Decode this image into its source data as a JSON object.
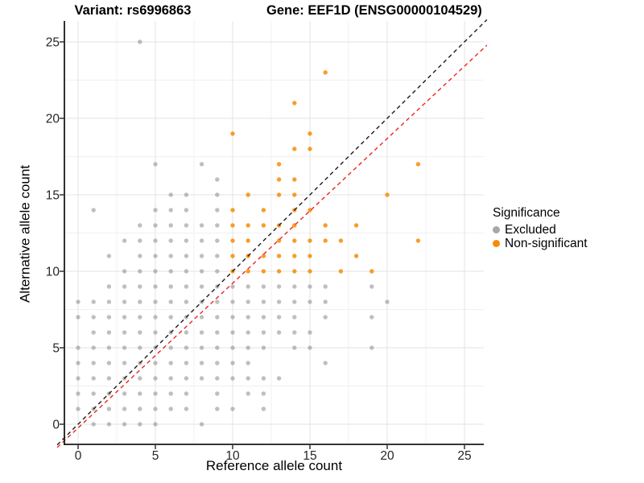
{
  "figure": {
    "title_left": "Variant: rs6996863",
    "title_right": "Gene: EEF1D (ENSG00000104529)"
  },
  "axes": {
    "x_label": "Reference allele count",
    "y_label": "Alternative allele count"
  },
  "legend": {
    "title": "Significance",
    "items": [
      {
        "label": "Excluded",
        "color": "#a8a8a8"
      },
      {
        "label": "Non-significant",
        "color": "#f78c04"
      }
    ]
  },
  "chart_data": {
    "type": "scatter",
    "title": "Variant: rs6996863 — Gene: EEF1D (ENSG00000104529)",
    "xlabel": "Reference allele count",
    "ylabel": "Alternative allele count",
    "x_ticks": [
      0,
      5,
      10,
      15,
      20,
      25
    ],
    "y_ticks": [
      0,
      5,
      10,
      15,
      20,
      25
    ],
    "xlim": [
      -0.9,
      26.3
    ],
    "ylim": [
      -1.35,
      26.4
    ],
    "grid": {
      "minor_every": 2.5,
      "major_every": 5,
      "major_color": "#e3e3e3",
      "minor_color": "#f0f0f0"
    },
    "legend_position": "right",
    "reference_lines": [
      {
        "name": "identity",
        "slope": 1,
        "intercept": 0,
        "color": "#1a1a1a",
        "style": "dashed"
      },
      {
        "name": "fit",
        "slope": 0.946,
        "intercept": -0.24,
        "color": "#ee2222",
        "style": "dashed"
      }
    ],
    "series": [
      {
        "name": "Excluded",
        "color": "#808080",
        "opacity": 0.5,
        "points": [
          [
            1,
            0
          ],
          [
            2,
            0
          ],
          [
            3,
            0
          ],
          [
            4,
            0
          ],
          [
            5,
            0
          ],
          [
            8,
            0
          ],
          [
            0,
            1
          ],
          [
            1,
            1
          ],
          [
            2,
            1
          ],
          [
            3,
            1
          ],
          [
            4,
            1
          ],
          [
            5,
            1
          ],
          [
            6,
            1
          ],
          [
            7,
            1
          ],
          [
            9,
            1
          ],
          [
            10,
            1
          ],
          [
            12,
            1
          ],
          [
            0,
            2
          ],
          [
            1,
            2
          ],
          [
            2,
            2
          ],
          [
            3,
            2
          ],
          [
            4,
            2
          ],
          [
            5,
            2
          ],
          [
            6,
            2
          ],
          [
            7,
            2
          ],
          [
            9,
            2
          ],
          [
            11,
            2
          ],
          [
            12,
            2
          ],
          [
            0,
            3
          ],
          [
            1,
            3
          ],
          [
            2,
            3
          ],
          [
            3,
            3
          ],
          [
            4,
            3
          ],
          [
            5,
            3
          ],
          [
            6,
            3
          ],
          [
            7,
            3
          ],
          [
            8,
            3
          ],
          [
            9,
            3
          ],
          [
            10,
            3
          ],
          [
            11,
            3
          ],
          [
            12,
            3
          ],
          [
            13,
            3
          ],
          [
            0,
            4
          ],
          [
            1,
            4
          ],
          [
            2,
            4
          ],
          [
            3,
            4
          ],
          [
            4,
            4
          ],
          [
            5,
            4
          ],
          [
            6,
            4
          ],
          [
            7,
            4
          ],
          [
            8,
            4
          ],
          [
            9,
            4
          ],
          [
            10,
            4
          ],
          [
            11,
            4
          ],
          [
            16,
            4
          ],
          [
            0,
            5
          ],
          [
            1,
            5
          ],
          [
            2,
            5
          ],
          [
            3,
            5
          ],
          [
            4,
            5
          ],
          [
            5,
            5
          ],
          [
            6,
            5
          ],
          [
            7,
            5
          ],
          [
            8,
            5
          ],
          [
            9,
            5
          ],
          [
            10,
            5
          ],
          [
            11,
            5
          ],
          [
            12,
            5
          ],
          [
            14,
            5
          ],
          [
            15,
            5
          ],
          [
            19,
            5
          ],
          [
            1,
            6
          ],
          [
            2,
            6
          ],
          [
            3,
            6
          ],
          [
            4,
            6
          ],
          [
            5,
            6
          ],
          [
            6,
            6
          ],
          [
            7,
            6
          ],
          [
            8,
            6
          ],
          [
            9,
            6
          ],
          [
            10,
            6
          ],
          [
            11,
            6
          ],
          [
            12,
            6
          ],
          [
            13,
            6
          ],
          [
            14,
            6
          ],
          [
            15,
            6
          ],
          [
            0,
            7
          ],
          [
            1,
            7
          ],
          [
            2,
            7
          ],
          [
            3,
            7
          ],
          [
            4,
            7
          ],
          [
            5,
            7
          ],
          [
            6,
            7
          ],
          [
            7,
            7
          ],
          [
            8,
            7
          ],
          [
            9,
            7
          ],
          [
            10,
            7
          ],
          [
            11,
            7
          ],
          [
            12,
            7
          ],
          [
            13,
            7
          ],
          [
            14,
            7
          ],
          [
            16,
            7
          ],
          [
            19,
            7
          ],
          [
            0,
            8
          ],
          [
            1,
            8
          ],
          [
            2,
            8
          ],
          [
            3,
            8
          ],
          [
            4,
            8
          ],
          [
            5,
            8
          ],
          [
            6,
            8
          ],
          [
            7,
            8
          ],
          [
            8,
            8
          ],
          [
            9,
            8
          ],
          [
            10,
            8
          ],
          [
            11,
            8
          ],
          [
            12,
            8
          ],
          [
            13,
            8
          ],
          [
            14,
            8
          ],
          [
            15,
            8
          ],
          [
            16,
            8
          ],
          [
            20,
            8
          ],
          [
            2,
            9
          ],
          [
            3,
            9
          ],
          [
            4,
            9
          ],
          [
            5,
            9
          ],
          [
            6,
            9
          ],
          [
            7,
            9
          ],
          [
            8,
            9
          ],
          [
            9,
            9
          ],
          [
            10,
            9
          ],
          [
            11,
            9
          ],
          [
            12,
            9
          ],
          [
            13,
            9
          ],
          [
            14,
            9
          ],
          [
            15,
            9
          ],
          [
            16,
            9
          ],
          [
            19,
            9
          ],
          [
            3,
            10
          ],
          [
            4,
            10
          ],
          [
            5,
            10
          ],
          [
            6,
            10
          ],
          [
            7,
            10
          ],
          [
            8,
            10
          ],
          [
            9,
            10
          ],
          [
            2,
            11
          ],
          [
            4,
            11
          ],
          [
            5,
            11
          ],
          [
            6,
            11
          ],
          [
            7,
            11
          ],
          [
            8,
            11
          ],
          [
            9,
            11
          ],
          [
            3,
            12
          ],
          [
            4,
            12
          ],
          [
            5,
            12
          ],
          [
            6,
            12
          ],
          [
            7,
            12
          ],
          [
            8,
            12
          ],
          [
            9,
            12
          ],
          [
            4,
            13
          ],
          [
            5,
            13
          ],
          [
            6,
            13
          ],
          [
            7,
            13
          ],
          [
            8,
            13
          ],
          [
            9,
            13
          ],
          [
            1,
            14
          ],
          [
            5,
            14
          ],
          [
            6,
            14
          ],
          [
            7,
            14
          ],
          [
            9,
            14
          ],
          [
            6,
            15
          ],
          [
            7,
            15
          ],
          [
            9,
            15
          ],
          [
            9,
            16
          ],
          [
            5,
            17
          ],
          [
            8,
            17
          ],
          [
            4,
            25
          ]
        ]
      },
      {
        "name": "Non-significant",
        "color": "#f78c04",
        "opacity": 0.85,
        "points": [
          [
            10,
            10
          ],
          [
            11,
            10
          ],
          [
            12,
            10
          ],
          [
            13,
            10
          ],
          [
            14,
            10
          ],
          [
            15,
            10
          ],
          [
            17,
            10
          ],
          [
            19,
            10
          ],
          [
            10,
            11
          ],
          [
            11,
            11
          ],
          [
            12,
            11
          ],
          [
            13,
            11
          ],
          [
            14,
            11
          ],
          [
            15,
            11
          ],
          [
            18,
            11
          ],
          [
            10,
            12
          ],
          [
            11,
            12
          ],
          [
            13,
            12
          ],
          [
            14,
            12
          ],
          [
            15,
            12
          ],
          [
            16,
            12
          ],
          [
            17,
            12
          ],
          [
            22,
            12
          ],
          [
            10,
            13
          ],
          [
            11,
            13
          ],
          [
            12,
            13
          ],
          [
            13,
            13
          ],
          [
            14,
            13
          ],
          [
            16,
            13
          ],
          [
            18,
            13
          ],
          [
            10,
            14
          ],
          [
            12,
            14
          ],
          [
            14,
            14
          ],
          [
            15,
            14
          ],
          [
            11,
            15
          ],
          [
            13,
            15
          ],
          [
            14,
            15
          ],
          [
            20,
            15
          ],
          [
            13,
            16
          ],
          [
            14,
            16
          ],
          [
            13,
            17
          ],
          [
            22,
            17
          ],
          [
            14,
            18
          ],
          [
            15,
            18
          ],
          [
            10,
            19
          ],
          [
            15,
            19
          ],
          [
            14,
            21
          ],
          [
            16,
            23
          ]
        ]
      }
    ]
  }
}
